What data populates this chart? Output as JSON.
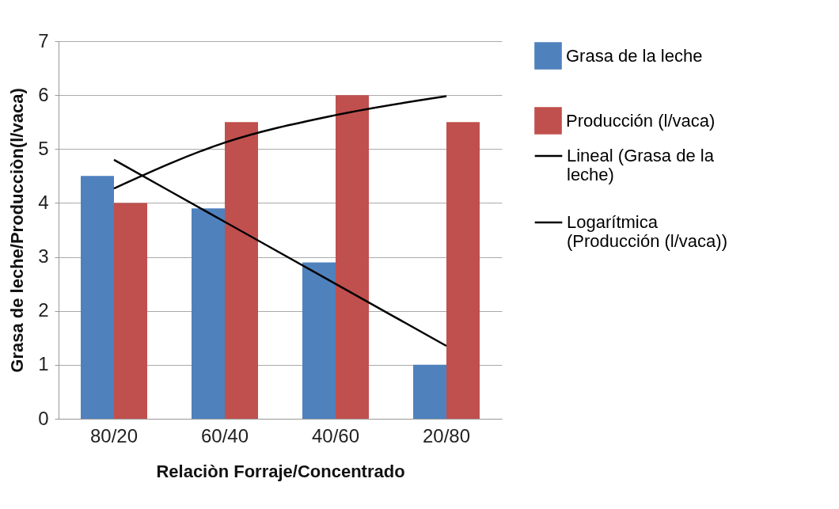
{
  "chart_data": {
    "type": "bar",
    "xlabel": "Relaciòn Forraje/Concentrado",
    "ylabel": "Grasa de leche/Producciòn(l/vaca)",
    "categories": [
      "80/20",
      "60/40",
      "40/60",
      "20/80"
    ],
    "series": [
      {
        "name": "Grasa de la leche",
        "color": "#4f81bd",
        "values": [
          4.5,
          3.9,
          2.9,
          1.0
        ]
      },
      {
        "name": "Producción (l/vaca)",
        "color": "#c0504d",
        "values": [
          4.0,
          5.5,
          6.0,
          5.5
        ]
      },
      {
        "name": "Lineal (Grasa de la leche)",
        "type": "line",
        "color": "#000000",
        "values": [
          4.8,
          3.65,
          2.5,
          1.35
        ]
      },
      {
        "name": "Logarítmica (Producción (l/vaca))",
        "type": "line",
        "color": "#000000",
        "values": [
          4.27,
          5.12,
          5.63,
          5.98
        ]
      }
    ],
    "ylim": [
      0,
      7
    ],
    "yticks": [
      0,
      1,
      2,
      3,
      4,
      5,
      6,
      7
    ],
    "grid": "y",
    "legend": "right"
  }
}
